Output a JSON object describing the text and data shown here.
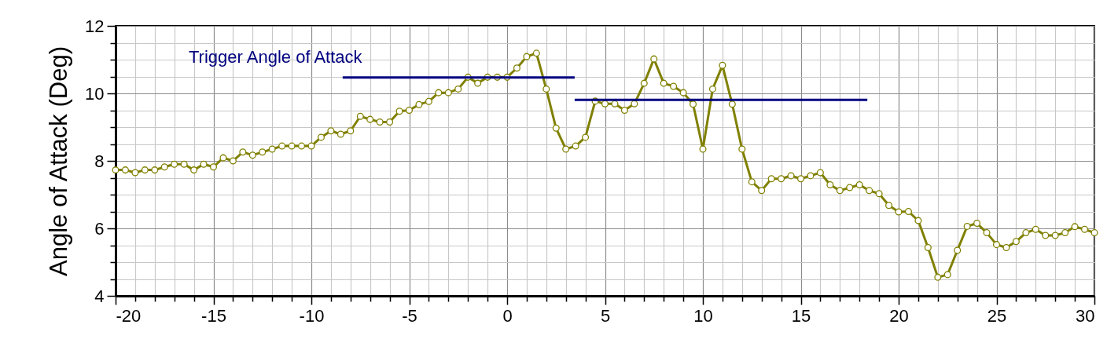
{
  "chart_data": {
    "type": "line",
    "ylabel": "Angle of Attack (Deg)",
    "x": [
      -20,
      -19.5,
      -19,
      -18.5,
      -18,
      -17.5,
      -17,
      -16.5,
      -16,
      -15.5,
      -15,
      -14.5,
      -14,
      -13.5,
      -13,
      -12.5,
      -12,
      -11.5,
      -11,
      -10.5,
      -10,
      -9.5,
      -9,
      -8.5,
      -8,
      -7.5,
      -7,
      -6.5,
      -6,
      -5.5,
      -5,
      -4.5,
      -4,
      -3.5,
      -3,
      -2.5,
      -2,
      -1.5,
      -1,
      -0.5,
      0,
      0.5,
      1,
      1.5,
      2,
      2.5,
      3,
      3.5,
      4,
      4.5,
      5,
      5.5,
      6,
      6.5,
      7,
      7.5,
      8,
      8.5,
      9,
      9.5,
      10,
      10.5,
      11,
      11.5,
      12,
      12.5,
      13,
      13.5,
      14,
      14.5,
      15,
      15.5,
      16,
      16.5,
      17,
      17.5,
      18,
      18.5,
      19,
      19.5,
      20,
      20.5,
      21,
      21.5,
      22,
      22.5,
      23,
      23.5,
      24,
      24.5,
      25,
      25.5,
      26,
      26.5,
      27,
      27.5,
      28,
      28.5,
      29,
      29.5,
      30
    ],
    "series": [
      {
        "color": "#808000",
        "marker": "circle",
        "values": [
          7.73,
          7.73,
          7.65,
          7.73,
          7.73,
          7.82,
          7.9,
          7.9,
          7.73,
          7.9,
          7.82,
          8.09,
          8.0,
          8.26,
          8.17,
          8.26,
          8.35,
          8.44,
          8.44,
          8.44,
          8.44,
          8.7,
          8.89,
          8.79,
          8.89,
          9.32,
          9.23,
          9.15,
          9.15,
          9.47,
          9.5,
          9.67,
          9.76,
          10.02,
          10.02,
          10.13,
          10.48,
          10.3,
          10.48,
          10.48,
          10.48,
          10.75,
          11.09,
          11.19,
          10.13,
          8.97,
          8.35,
          8.44,
          8.7,
          9.77,
          9.69,
          9.69,
          9.5,
          9.69,
          10.3,
          11.02,
          10.3,
          10.21,
          10.02,
          9.68,
          8.35,
          10.13,
          10.83,
          9.68,
          8.35,
          7.38,
          7.12,
          7.47,
          7.47,
          7.56,
          7.47,
          7.56,
          7.65,
          7.29,
          7.12,
          7.21,
          7.29,
          7.12,
          7.03,
          6.68,
          6.49,
          6.5,
          6.23,
          5.43,
          4.55,
          4.63,
          5.35,
          6.06,
          6.15,
          5.87,
          5.52,
          5.43,
          5.61,
          5.87,
          5.97,
          5.79,
          5.79,
          5.87,
          6.05,
          5.97,
          5.87
        ]
      },
      {
        "type": "line",
        "color": "#000080",
        "marker": "none",
        "x": [
          -8.4,
          3.45
        ],
        "values": [
          10.47,
          10.47
        ]
      },
      {
        "type": "line",
        "color": "#000080",
        "marker": "none",
        "x": [
          3.45,
          18.4
        ],
        "values": [
          9.81,
          9.81
        ]
      }
    ],
    "annotations": [
      "Trigger Angle of Attack"
    ],
    "xlim": [
      -20,
      30
    ],
    "xticks": [
      -20,
      {
        "value": -19,
        "label": null
      },
      {
        "value": -18,
        "label": null
      },
      {
        "value": -17,
        "label": null
      },
      {
        "value": -16,
        "label": null
      },
      -15,
      {
        "value": -14,
        "label": null
      },
      {
        "value": -13,
        "label": null
      },
      {
        "value": -12,
        "label": null
      },
      {
        "value": -11,
        "label": null
      },
      -10,
      {
        "value": -9,
        "label": null
      },
      {
        "value": -8,
        "label": null
      },
      {
        "value": -7,
        "label": null
      },
      {
        "value": -6,
        "label": null
      },
      -5,
      {
        "value": -4,
        "label": null
      },
      {
        "value": -3,
        "label": null
      },
      {
        "value": -2,
        "label": null
      },
      {
        "value": -1,
        "label": null
      },
      0,
      {
        "value": 1,
        "label": null
      },
      {
        "value": 2,
        "label": null
      },
      {
        "value": 3,
        "label": null
      },
      {
        "value": 4,
        "label": null
      },
      5,
      {
        "value": 6,
        "label": null
      },
      {
        "value": 7,
        "label": null
      },
      {
        "value": 8,
        "label": null
      },
      {
        "value": 9,
        "label": null
      },
      10,
      {
        "value": 11,
        "label": null
      },
      {
        "value": 12,
        "label": null
      },
      {
        "value": 13,
        "label": null
      },
      {
        "value": 14,
        "label": null
      },
      15,
      {
        "value": 16,
        "label": null
      },
      {
        "value": 17,
        "label": null
      },
      {
        "value": 18,
        "label": null
      },
      {
        "value": 19,
        "label": null
      },
      20,
      {
        "value": 21,
        "label": null
      },
      {
        "value": 22,
        "label": null
      },
      {
        "value": 23,
        "label": null
      },
      {
        "value": 24,
        "label": null
      },
      25,
      {
        "value": 26,
        "label": null
      },
      {
        "value": 27,
        "label": null
      },
      {
        "value": 28,
        "label": null
      },
      {
        "value": 29,
        "label": null
      },
      30
    ],
    "ylim": [
      4,
      12
    ],
    "yticks": [
      4,
      {
        "value": 4.5,
        "label": null
      },
      {
        "value": 5,
        "label": null
      },
      {
        "value": 5.5,
        "label": null
      },
      6,
      {
        "value": 6.5,
        "label": null
      },
      {
        "value": 7,
        "label": null
      },
      {
        "value": 7.5,
        "label": null
      },
      8,
      {
        "value": 8.5,
        "label": null
      },
      {
        "value": 9,
        "label": null
      },
      {
        "value": 9.5,
        "label": null
      },
      10,
      {
        "value": 10.5,
        "label": null
      },
      {
        "value": 11,
        "label": null
      },
      {
        "value": 11.5,
        "label": null
      },
      12
    ],
    "grid": true
  }
}
